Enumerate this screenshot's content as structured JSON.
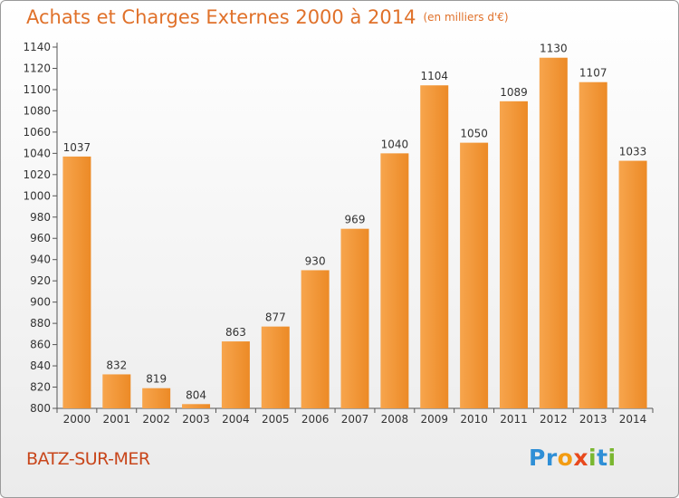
{
  "title": "Achats et Charges Externes 2000 à 2014",
  "subtitle": "(en milliers d'€)",
  "city": "BATZ-SUR-MER",
  "logo": {
    "letters": [
      {
        "ch": "P",
        "color": "#2f8fd6"
      },
      {
        "ch": "r",
        "color": "#2f8fd6"
      },
      {
        "ch": "o",
        "color": "#f39c12"
      },
      {
        "ch": "x",
        "color": "#e8491d"
      },
      {
        "ch": "i",
        "color": "#7ab730"
      },
      {
        "ch": "t",
        "color": "#2f8fd6"
      },
      {
        "ch": "i",
        "color": "#7ab730"
      }
    ]
  },
  "colors": {
    "title": "#e0712a",
    "bar_light": "#f7a54d",
    "bar_dark": "#ec8a26",
    "city": "#c8461b"
  },
  "chart_data": {
    "type": "bar",
    "categories": [
      "2000",
      "2001",
      "2002",
      "2003",
      "2004",
      "2005",
      "2006",
      "2007",
      "2008",
      "2009",
      "2010",
      "2011",
      "2012",
      "2013",
      "2014"
    ],
    "values": [
      1037,
      832,
      819,
      804,
      863,
      877,
      930,
      969,
      1040,
      1104,
      1050,
      1089,
      1130,
      1107,
      1033
    ],
    "ylim": [
      800,
      1140
    ],
    "yticks": [
      800,
      820,
      840,
      860,
      880,
      900,
      920,
      940,
      960,
      980,
      1000,
      1020,
      1040,
      1060,
      1080,
      1100,
      1120,
      1140
    ],
    "grid": false
  }
}
